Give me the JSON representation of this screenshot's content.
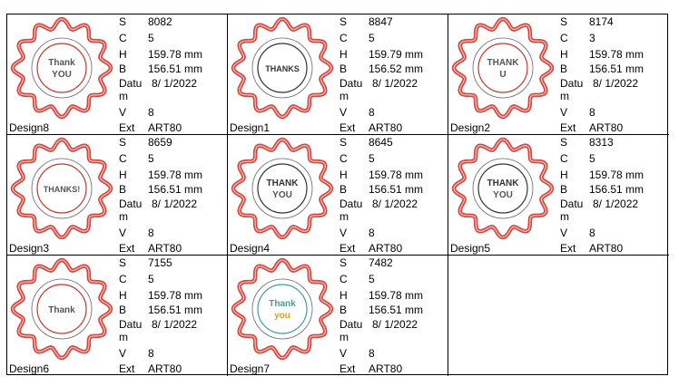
{
  "designs": [
    {
      "name": "Design8",
      "S": "8082",
      "C": "5",
      "H": "159.78 mm",
      "B": "156.51 mm",
      "datum_label": "Datu",
      "datum_wrap": "m",
      "datum": "8/ 1/2022",
      "V": "8",
      "ext_label": "Ext",
      "ext": "ART80",
      "thumb_text1": "Thank",
      "thumb_text2": "YOU",
      "accent": "#c0392b"
    },
    {
      "name": "Design1",
      "S": "8847",
      "C": "5",
      "H": "159.79 mm",
      "B": "156.52 mm",
      "datum_label": "Datu",
      "datum_wrap": "m",
      "datum": "8/ 1/2022",
      "V": "8",
      "ext_label": "Ext",
      "ext": "ART80",
      "thumb_text1": "THANKS",
      "thumb_text2": "",
      "accent": "#333333"
    },
    {
      "name": "Design2",
      "S": "8174",
      "C": "3",
      "H": "159.78 mm",
      "B": "156.51 mm",
      "datum_label": "Datu",
      "datum_wrap": "m",
      "datum": "8/ 1/2022",
      "V": "8",
      "ext_label": "Ext",
      "ext": "ART80",
      "thumb_text1": "THANK",
      "thumb_text2": "U",
      "accent": "#c0392b"
    },
    {
      "name": "Design3",
      "S": "8659",
      "C": "5",
      "H": "159.78 mm",
      "B": "156.51 mm",
      "datum_label": "Datu",
      "datum_wrap": "m",
      "datum": "8/ 1/2022",
      "V": "8",
      "ext_label": "Ext",
      "ext": "ART80",
      "thumb_text1": "THANKS!",
      "thumb_text2": "",
      "accent": "#c0392b"
    },
    {
      "name": "Design4",
      "S": "8645",
      "C": "5",
      "H": "159.78 mm",
      "B": "156.51 mm",
      "datum_label": "Datu",
      "datum_wrap": "m",
      "datum": "8/ 1/2022",
      "V": "8",
      "ext_label": "Ext",
      "ext": "ART80",
      "thumb_text1": "THANK",
      "thumb_text2": "YOU",
      "accent": "#333333"
    },
    {
      "name": "Design5",
      "S": "8313",
      "C": "5",
      "H": "159.78 mm",
      "B": "156.51 mm",
      "datum_label": "Datu",
      "datum_wrap": "m",
      "datum": "8/ 1/2022",
      "V": "8",
      "ext_label": "Ext",
      "ext": "ART80",
      "thumb_text1": "THANK",
      "thumb_text2": "YOU",
      "accent": "#333333"
    },
    {
      "name": "Design6",
      "S": "7155",
      "C": "5",
      "H": "159.78 mm",
      "B": "156.51 mm",
      "datum_label": "Datu",
      "datum_wrap": "m",
      "datum": "8/ 1/2022",
      "V": "8",
      "ext_label": "Ext",
      "ext": "ART80",
      "thumb_text1": "Thank",
      "thumb_text2": "",
      "accent": "#c0392b"
    },
    {
      "name": "Design7",
      "S": "7482",
      "C": "5",
      "H": "159.78 mm",
      "B": "156.51 mm",
      "datum_label": "Datu",
      "datum_wrap": "m",
      "datum": "8/ 1/2022",
      "V": "8",
      "ext_label": "Ext",
      "ext": "ART80",
      "thumb_text1": "Thank",
      "thumb_text2": "you",
      "accent": "#3aa39a"
    }
  ],
  "labels": {
    "S": "S",
    "C": "C",
    "H": "H",
    "B": "B",
    "V": "V"
  },
  "colors": {
    "scallop": "#d9443c",
    "scallop_inner": "#f6c8c4"
  }
}
